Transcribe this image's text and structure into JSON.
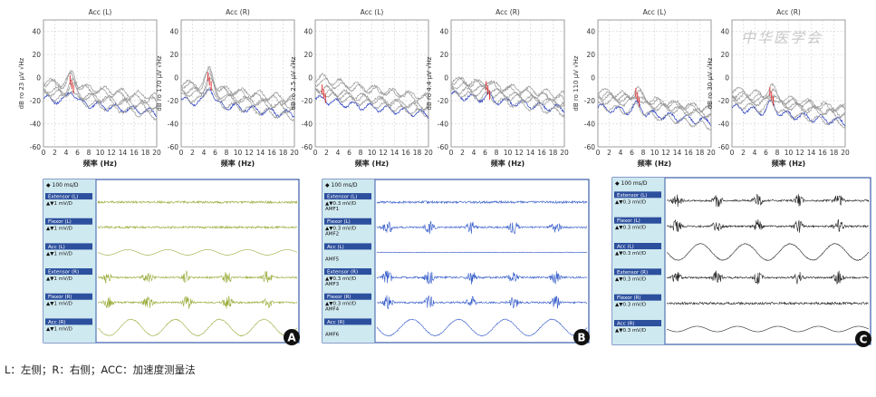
{
  "caption": "L：左侧；R：右侧；ACC：加速度测量法",
  "watermark": "中华医学会",
  "spectra": {
    "xlabel": "频率 (Hz)",
    "x_ticks": [
      "0",
      "2",
      "4",
      "6",
      "8",
      "10",
      "12",
      "14",
      "16",
      "18",
      "20"
    ],
    "y_ticks": [
      "40",
      "20",
      "0",
      "-20",
      "-40",
      "-60"
    ],
    "ylim": [
      -60,
      50
    ],
    "xlim": [
      0,
      20
    ],
    "plots": [
      {
        "title": "Acc (L)",
        "ylabel": "dB ro 23 μV √Hz",
        "peak": 5,
        "amp": 10,
        "base": -10
      },
      {
        "title": "Acc (R)",
        "ylabel": "dB ro 170 μV √Hz",
        "peak": 5,
        "amp": 15,
        "base": -12
      },
      {
        "title": "Acc (L)",
        "ylabel": "dB ro 2.5 μV √Hz",
        "peak": 1.5,
        "amp": 2,
        "base": -10
      },
      {
        "title": "Acc (R)",
        "ylabel": "dB ro 4.4 μV √Hz",
        "peak": 6.5,
        "amp": 3,
        "base": -8
      },
      {
        "title": "Acc (L)",
        "ylabel": "dB ro 110 μV √Hz",
        "peak": 7,
        "amp": 7,
        "base": -18
      },
      {
        "title": "Acc (R)",
        "ylabel": "dB ro 30 μV √Hz",
        "peak": 7,
        "amp": 8,
        "base": -18
      }
    ]
  },
  "traces": {
    "timescale": "100 ms/D",
    "panels": [
      {
        "label": "A",
        "channels": [
          {
            "name": "Extensor (L)",
            "scale": "1 mV/D",
            "mode": "noise"
          },
          {
            "name": "Flexor (L)",
            "scale": "1 mV/D",
            "mode": "noise"
          },
          {
            "name": "Acc (L)",
            "scale": "1 mV/D",
            "mode": "sine"
          },
          {
            "name": "Extensor (R)",
            "scale": "1 mV/D",
            "mode": "burst"
          },
          {
            "name": "Flexor (R)",
            "scale": "1 mV/D",
            "mode": "burst"
          },
          {
            "name": "Acc (R)",
            "scale": "1 mV/D",
            "mode": "bigsine"
          }
        ]
      },
      {
        "label": "B",
        "channels": [
          {
            "name": "Extensor (L)",
            "scale": "0.3 mV/D",
            "sub": "AMF1",
            "mode": "noise"
          },
          {
            "name": "Flexor (L)",
            "scale": "0.3 mV/D",
            "sub": "AMF2",
            "mode": "burst"
          },
          {
            "name": "Acc (L)",
            "scale": "",
            "sub": "AMF5",
            "mode": "flat"
          },
          {
            "name": "Extensor (R)",
            "scale": "0.3 mV/D",
            "sub": "AMF3",
            "mode": "burst"
          },
          {
            "name": "Flexor (R)",
            "scale": "0.3 mV/D",
            "sub": "AMF4",
            "mode": "burst"
          },
          {
            "name": "Acc (R)",
            "scale": "",
            "sub": "AMF6",
            "mode": "bigsine"
          }
        ]
      },
      {
        "label": "C",
        "channels": [
          {
            "name": "Extensor (L)",
            "scale": "0.3 mV/D",
            "mode": "burst"
          },
          {
            "name": "Flexor (L)",
            "scale": "0.3 mV/D",
            "mode": "burst"
          },
          {
            "name": "Acc (L)",
            "scale": "0.3 mV/D",
            "mode": "bigsine"
          },
          {
            "name": "Extensor (R)",
            "scale": "0.3 mV/D",
            "mode": "burst"
          },
          {
            "name": "Flexor (R)",
            "scale": "0.3 mV/D",
            "mode": "noise"
          },
          {
            "name": "Acc (R)",
            "scale": "0.3 mV/D",
            "mode": "sine"
          }
        ]
      }
    ]
  },
  "colors": {
    "spectrum": "#2a3fbf",
    "trace_a": "#9aab3a",
    "trace_b": "#2f57c8",
    "trace_c": "#222222",
    "panel_bg": "#cfe9f0",
    "marker": "#e02020"
  }
}
